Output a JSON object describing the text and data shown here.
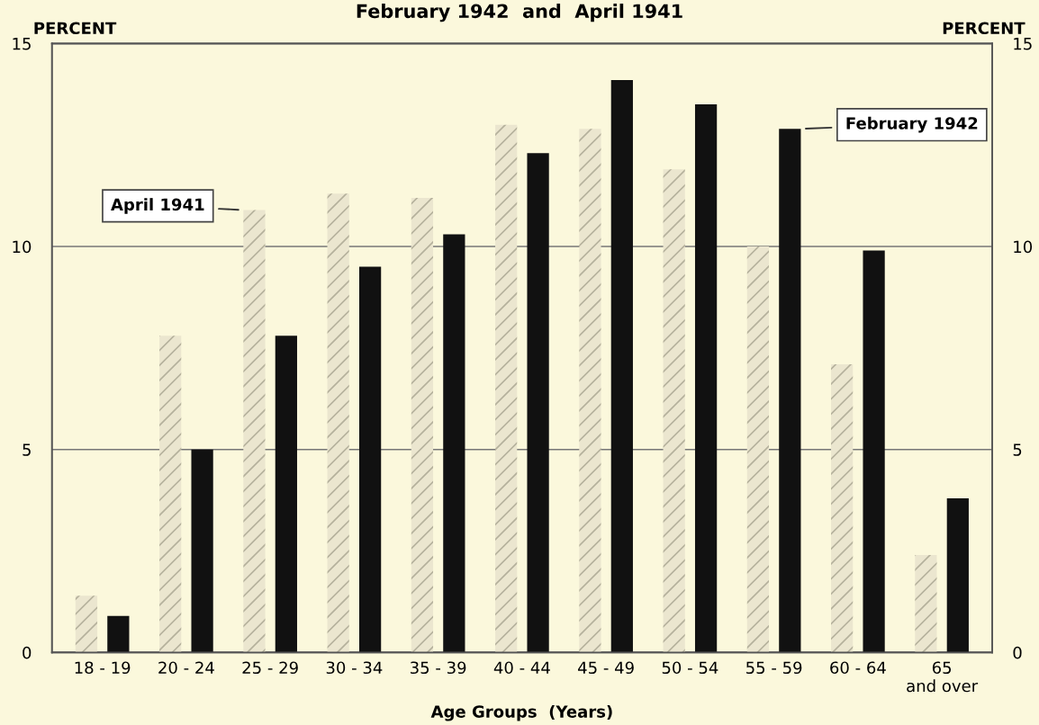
{
  "chart_data": {
    "type": "bar",
    "title": "February 1942  and  April 1941",
    "categories": [
      "18 - 19",
      "20 - 24",
      "25 - 29",
      "30 - 34",
      "35 - 39",
      "40 - 44",
      "45 - 49",
      "50 - 54",
      "55 - 59",
      "60 - 64",
      "65\nand over"
    ],
    "series": [
      {
        "name": "April 1941",
        "color": "#ebe6cf",
        "values": [
          1.4,
          7.8,
          10.9,
          11.3,
          11.2,
          13.0,
          12.9,
          11.9,
          10.0,
          7.1,
          2.4
        ]
      },
      {
        "name": "February 1942",
        "color": "#111111",
        "values": [
          0.9,
          5.0,
          7.8,
          9.5,
          10.3,
          12.3,
          14.1,
          13.5,
          12.9,
          9.9,
          3.8
        ]
      }
    ],
    "xlabel": "Age Groups  (Years)",
    "ylabel": "PERCENT",
    "y2label": "PERCENT",
    "ylim": [
      0,
      15
    ],
    "yticks": [
      0,
      5,
      10,
      15
    ],
    "y2lim": [
      0,
      15
    ],
    "y2ticks": [
      0,
      5,
      10,
      15
    ],
    "grid": "y",
    "legend": false
  }
}
